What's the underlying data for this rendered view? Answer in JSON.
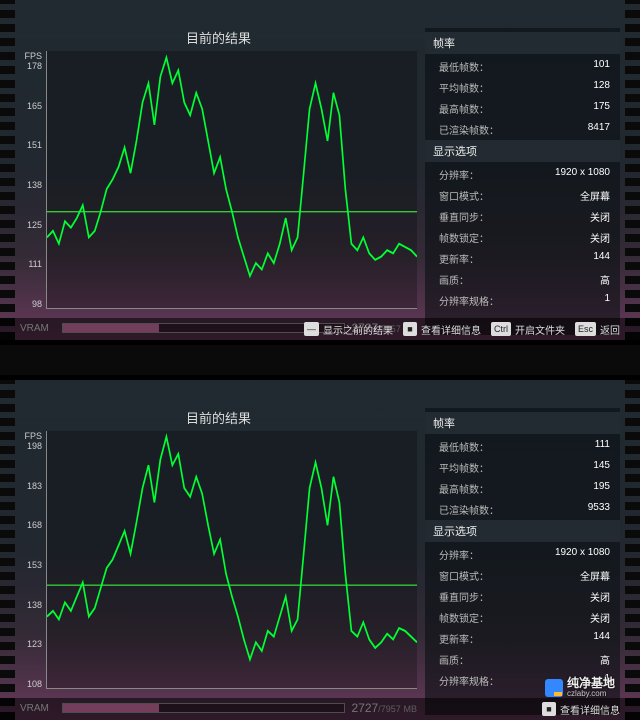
{
  "panels": [
    {
      "chart": {
        "title": "目前的结果",
        "fps_label": "FPS",
        "y_ticks": [
          178,
          165,
          151,
          138,
          125,
          111,
          98
        ],
        "ylim": [
          98,
          178
        ],
        "baseline_y": 128,
        "line_color": "#00ff33",
        "hline_color": "#33cc33",
        "values": [
          120,
          122,
          118,
          125,
          123,
          126,
          130,
          120,
          122,
          128,
          135,
          138,
          142,
          148,
          140,
          150,
          162,
          168,
          155,
          170,
          176,
          168,
          172,
          162,
          158,
          165,
          160,
          150,
          140,
          145,
          135,
          128,
          120,
          114,
          108,
          112,
          110,
          115,
          112,
          118,
          126,
          116,
          120,
          140,
          160,
          168,
          160,
          150,
          165,
          158,
          135,
          118,
          116,
          120,
          115,
          113,
          114,
          116,
          115,
          118,
          117,
          116,
          114
        ]
      },
      "vram": {
        "label": "VRAM",
        "used": 2727,
        "total": 7957,
        "unit": "MB",
        "fill_color": "#ff88cc",
        "fill_pct": 34
      },
      "stats": {
        "fps_header": "帧率",
        "fps_rows": [
          {
            "label": "最低帧数：",
            "value": "101"
          },
          {
            "label": "平均帧数：",
            "value": "128"
          },
          {
            "label": "最高帧数：",
            "value": "175"
          },
          {
            "label": "已渲染帧数：",
            "value": "8417"
          }
        ],
        "disp_header": "显示选项",
        "disp_rows": [
          {
            "label": "分辨率：",
            "value": "1920 x 1080"
          },
          {
            "label": "窗口模式：",
            "value": "全屏幕"
          },
          {
            "label": "垂直同步：",
            "value": "关闭"
          },
          {
            "label": "帧数锁定：",
            "value": "关闭"
          },
          {
            "label": "更新率：",
            "value": "144"
          },
          {
            "label": "画质：",
            "value": "高"
          },
          {
            "label": "分辨率规格：",
            "value": "1"
          }
        ]
      },
      "actions": [
        {
          "key": "—",
          "label": "显示之前的结果"
        },
        {
          "key": "■",
          "label": "查看详细信息"
        },
        {
          "key": "Ctrl",
          "label": "开启文件夹"
        },
        {
          "key": "Esc",
          "label": "返回"
        }
      ]
    },
    {
      "chart": {
        "title": "目前的结果",
        "fps_label": "FPS",
        "y_ticks": [
          198,
          183,
          168,
          153,
          138,
          123,
          108
        ],
        "ylim": [
          108,
          198
        ],
        "baseline_y": 144,
        "line_color": "#00ff33",
        "hline_color": "#33cc33",
        "values": [
          133,
          135,
          132,
          138,
          135,
          140,
          145,
          133,
          136,
          143,
          150,
          153,
          158,
          163,
          155,
          166,
          178,
          186,
          173,
          188,
          196,
          186,
          190,
          178,
          175,
          182,
          176,
          165,
          155,
          160,
          148,
          140,
          133,
          125,
          118,
          124,
          121,
          128,
          126,
          133,
          140,
          128,
          132,
          155,
          178,
          187,
          178,
          165,
          182,
          173,
          148,
          128,
          126,
          131,
          125,
          122,
          124,
          127,
          125,
          129,
          128,
          126,
          124
        ]
      },
      "vram": {
        "label": "VRAM",
        "used": 2727,
        "total": 7957,
        "unit": "MB",
        "fill_color": "#ff88cc",
        "fill_pct": 34
      },
      "stats": {
        "fps_header": "帧率",
        "fps_rows": [
          {
            "label": "最低帧数：",
            "value": "111"
          },
          {
            "label": "平均帧数：",
            "value": "145"
          },
          {
            "label": "最高帧数：",
            "value": "195"
          },
          {
            "label": "已渲染帧数：",
            "value": "9533"
          }
        ],
        "disp_header": "显示选项",
        "disp_rows": [
          {
            "label": "分辨率：",
            "value": "1920 x 1080"
          },
          {
            "label": "窗口模式：",
            "value": "全屏幕"
          },
          {
            "label": "垂直同步：",
            "value": "关闭"
          },
          {
            "label": "帧数锁定：",
            "value": "关闭"
          },
          {
            "label": "更新率：",
            "value": "144"
          },
          {
            "label": "画质：",
            "value": "高"
          },
          {
            "label": "分辨率规格：",
            "value": "1"
          }
        ]
      },
      "actions": [
        {
          "key": "■",
          "label": "查看详细信息"
        }
      ]
    }
  ],
  "watermark": {
    "name": "纯净基地",
    "url": "czlaby.com"
  }
}
